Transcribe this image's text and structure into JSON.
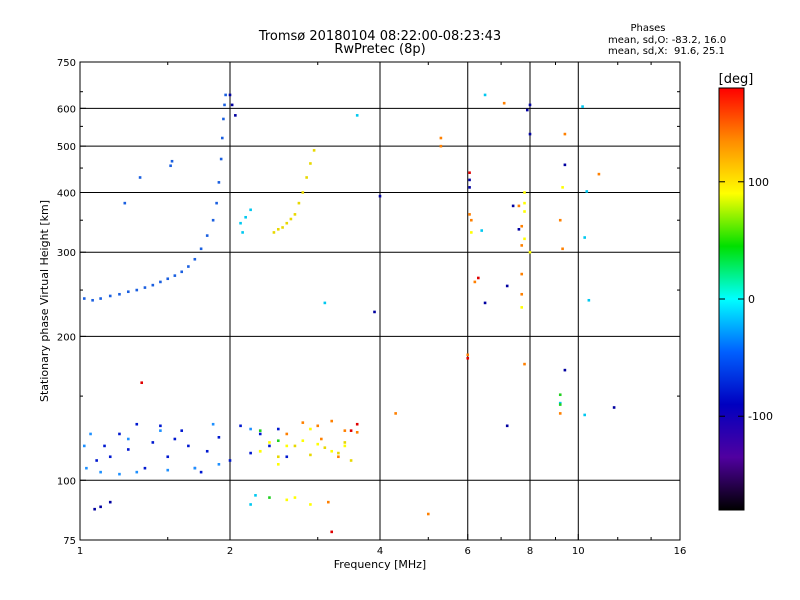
{
  "chart_data": {
    "type": "scatter",
    "title": "Tromsø 20180104 08:22:00-08:23:43",
    "subtitle": "RwPretec (8p)",
    "xlabel": "Frequency [MHz]",
    "ylabel": "Stationary phase Virtual Height [km]",
    "x_scale": "log",
    "y_scale": "log",
    "xlim": [
      1,
      16
    ],
    "ylim": [
      75,
      750
    ],
    "x_ticks": [
      1,
      2,
      4,
      6,
      8,
      10,
      16
    ],
    "y_ticks": [
      75,
      100,
      200,
      300,
      400,
      500,
      600,
      750
    ],
    "grid": true,
    "phases": {
      "heading": "Phases",
      "line_o": "mean, sd,O: -83.2, 16.0",
      "line_x": "mean, sd,X:  91.6, 25.1"
    },
    "colorbar": {
      "label": "[deg]",
      "range": [
        -180,
        180
      ],
      "ticks": [
        100,
        0,
        -100
      ],
      "colors": [
        "#ff0000",
        "#ff8c00",
        "#ffff00",
        "#00e000",
        "#00ffff",
        "#0060ff",
        "#0000c0",
        "#5000a0",
        "#000000"
      ]
    },
    "series": [
      {
        "color": "#1a5fe0",
        "points": [
          [
            1.02,
            240
          ],
          [
            1.06,
            238
          ],
          [
            1.1,
            240
          ],
          [
            1.15,
            243
          ],
          [
            1.2,
            245
          ],
          [
            1.25,
            248
          ],
          [
            1.3,
            250
          ],
          [
            1.35,
            253
          ],
          [
            1.4,
            256
          ],
          [
            1.45,
            260
          ],
          [
            1.5,
            264
          ],
          [
            1.55,
            268
          ],
          [
            1.6,
            273
          ],
          [
            1.65,
            280
          ],
          [
            1.7,
            290
          ],
          [
            1.75,
            305
          ],
          [
            1.8,
            325
          ],
          [
            1.85,
            350
          ],
          [
            1.88,
            380
          ],
          [
            1.9,
            420
          ],
          [
            1.92,
            470
          ],
          [
            1.93,
            520
          ],
          [
            1.94,
            570
          ],
          [
            1.95,
            610
          ],
          [
            1.96,
            640
          ],
          [
            1.52,
            455
          ],
          [
            1.53,
            465
          ],
          [
            1.32,
            430
          ],
          [
            1.23,
            380
          ]
        ]
      },
      {
        "color": "#0018d0",
        "points": [
          [
            1.08,
            110
          ],
          [
            1.12,
            118
          ],
          [
            1.2,
            125
          ],
          [
            1.3,
            131
          ],
          [
            1.4,
            120
          ],
          [
            1.5,
            112
          ],
          [
            1.6,
            127
          ],
          [
            1.7,
            106
          ],
          [
            1.8,
            115
          ],
          [
            1.9,
            123
          ],
          [
            2.0,
            110
          ],
          [
            2.1,
            130
          ],
          [
            2.2,
            114
          ],
          [
            2.3,
            125
          ],
          [
            2.4,
            118
          ],
          [
            2.5,
            128
          ],
          [
            2.6,
            112
          ],
          [
            1.35,
            106
          ],
          [
            1.45,
            130
          ],
          [
            1.65,
            118
          ],
          [
            1.75,
            104
          ],
          [
            1.55,
            122
          ],
          [
            1.25,
            116
          ],
          [
            1.15,
            112
          ]
        ]
      },
      {
        "color": "#1e90ff",
        "points": [
          [
            1.03,
            106
          ],
          [
            1.1,
            104
          ],
          [
            1.2,
            103
          ],
          [
            1.3,
            104
          ],
          [
            1.5,
            105
          ],
          [
            1.7,
            106
          ],
          [
            1.9,
            108
          ],
          [
            1.25,
            122
          ],
          [
            1.45,
            127
          ],
          [
            1.85,
            131
          ],
          [
            2.2,
            128
          ],
          [
            1.05,
            125
          ],
          [
            1.02,
            118
          ]
        ]
      },
      {
        "color": "#e8d800",
        "points": [
          [
            2.45,
            330
          ],
          [
            2.5,
            335
          ],
          [
            2.55,
            338
          ],
          [
            2.6,
            345
          ],
          [
            2.65,
            352
          ],
          [
            2.7,
            360
          ],
          [
            2.75,
            380
          ],
          [
            2.8,
            400
          ],
          [
            2.85,
            430
          ],
          [
            2.9,
            460
          ],
          [
            2.95,
            490
          ],
          [
            2.3,
            115
          ],
          [
            2.5,
            112
          ],
          [
            2.7,
            118
          ],
          [
            2.9,
            113
          ],
          [
            3.1,
            117
          ],
          [
            3.3,
            114
          ],
          [
            3.4,
            120
          ],
          [
            3.5,
            110
          ]
        ]
      },
      {
        "color": "#ff8000",
        "points": [
          [
            2.6,
            125
          ],
          [
            2.8,
            132
          ],
          [
            3.0,
            130
          ],
          [
            3.2,
            133
          ],
          [
            3.4,
            127
          ],
          [
            3.6,
            126
          ],
          [
            3.3,
            112
          ],
          [
            3.05,
            122
          ],
          [
            3.15,
            90
          ],
          [
            5.3,
            520
          ],
          [
            5.3,
            500
          ],
          [
            7.1,
            615
          ],
          [
            7.6,
            375
          ],
          [
            7.7,
            340
          ],
          [
            7.7,
            310
          ],
          [
            7.7,
            270
          ],
          [
            7.7,
            245
          ],
          [
            7.8,
            175
          ],
          [
            9.2,
            350
          ],
          [
            9.3,
            305
          ],
          [
            9.4,
            530
          ],
          [
            9.2,
            138
          ],
          [
            11.0,
            437
          ],
          [
            6.0,
            183
          ],
          [
            6.05,
            360
          ],
          [
            6.1,
            350
          ],
          [
            6.2,
            260
          ],
          [
            5.0,
            85
          ],
          [
            4.3,
            138
          ]
        ]
      },
      {
        "color": "#ffff00",
        "points": [
          [
            2.3,
            115
          ],
          [
            2.4,
            120
          ],
          [
            2.6,
            118
          ],
          [
            2.8,
            121
          ],
          [
            3.0,
            119
          ],
          [
            3.2,
            115
          ],
          [
            3.4,
            118
          ],
          [
            2.5,
            108
          ],
          [
            2.6,
            91
          ],
          [
            2.7,
            92
          ],
          [
            2.9,
            89
          ],
          [
            2.9,
            128
          ],
          [
            7.8,
            400
          ],
          [
            7.8,
            380
          ],
          [
            7.8,
            365
          ],
          [
            7.8,
            320
          ],
          [
            7.7,
            230
          ],
          [
            8.0,
            300
          ],
          [
            9.3,
            410
          ],
          [
            6.1,
            330
          ]
        ]
      },
      {
        "color": "#0000a0",
        "points": [
          [
            2.0,
            640
          ],
          [
            2.02,
            610
          ],
          [
            2.05,
            580
          ],
          [
            6.05,
            410
          ],
          [
            6.05,
            425
          ],
          [
            6.5,
            235
          ],
          [
            7.2,
            255
          ],
          [
            7.4,
            375
          ],
          [
            7.6,
            335
          ],
          [
            7.9,
            595
          ],
          [
            8.0,
            610
          ],
          [
            8.0,
            530
          ],
          [
            9.4,
            457
          ],
          [
            9.4,
            170
          ],
          [
            11.8,
            142
          ],
          [
            3.9,
            225
          ],
          [
            4.0,
            393
          ],
          [
            7.2,
            130
          ],
          [
            1.15,
            90
          ],
          [
            1.1,
            88
          ],
          [
            1.07,
            87
          ]
        ]
      },
      {
        "color": "#00c8f0",
        "points": [
          [
            6.5,
            640
          ],
          [
            6.4,
            333
          ],
          [
            10.2,
            605
          ],
          [
            10.3,
            322
          ],
          [
            10.4,
            402
          ],
          [
            10.5,
            238
          ],
          [
            10.3,
            137
          ],
          [
            9.2,
            145
          ],
          [
            2.1,
            345
          ],
          [
            2.15,
            355
          ],
          [
            2.2,
            368
          ],
          [
            2.12,
            330
          ],
          [
            3.1,
            235
          ],
          [
            3.6,
            580
          ],
          [
            2.25,
            93
          ],
          [
            2.2,
            89
          ]
        ]
      },
      {
        "color": "#e00000",
        "points": [
          [
            6.05,
            440
          ],
          [
            6.0,
            180
          ],
          [
            6.3,
            265
          ],
          [
            1.33,
            160
          ],
          [
            3.6,
            131
          ],
          [
            3.5,
            127
          ],
          [
            3.2,
            78
          ]
        ]
      },
      {
        "color": "#20d020",
        "points": [
          [
            9.2,
            144
          ],
          [
            9.2,
            151
          ],
          [
            2.5,
            121
          ],
          [
            2.3,
            127
          ],
          [
            2.4,
            92
          ]
        ]
      }
    ]
  }
}
